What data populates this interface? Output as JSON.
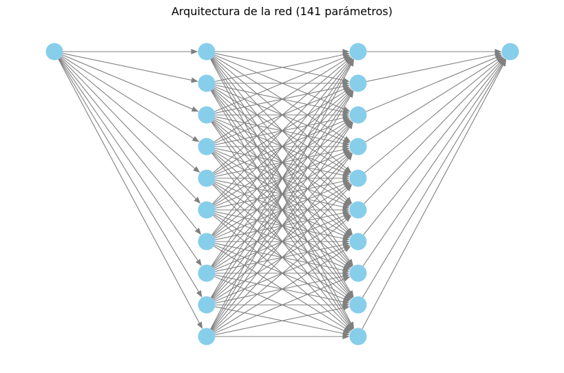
{
  "title": "Arquitectura de la red (141 parámetros)",
  "network": {
    "layers": [
      1,
      10,
      10,
      1
    ],
    "node_color": "#87ceeb",
    "edge_color": "#808080",
    "edges": "fully-connected",
    "directed": true
  }
}
